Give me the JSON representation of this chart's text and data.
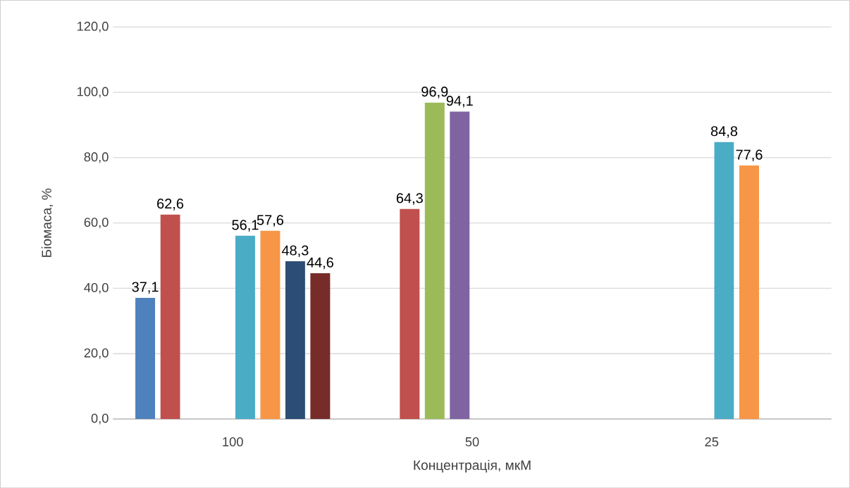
{
  "chart_data": {
    "type": "bar",
    "xlabel": "Концентрація, мкМ",
    "ylabel": "Біомаса, %",
    "categories": [
      "100",
      "50",
      "25"
    ],
    "series": [
      {
        "color": "#4f81bd",
        "values": [
          37.1,
          null,
          null
        ],
        "value_labels": [
          "37,1",
          null,
          null
        ]
      },
      {
        "color": "#c0504d",
        "values": [
          62.6,
          64.3,
          null
        ],
        "value_labels": [
          "62,6",
          "64,3",
          null
        ]
      },
      {
        "color": "#9bbb59",
        "values": [
          null,
          96.9,
          null
        ],
        "value_labels": [
          null,
          "96,9",
          null
        ]
      },
      {
        "color": "#8064a2",
        "values": [
          null,
          94.1,
          null
        ],
        "value_labels": [
          null,
          "94,1",
          null
        ]
      },
      {
        "color": "#4bacc6",
        "values": [
          56.1,
          null,
          84.8
        ],
        "value_labels": [
          "56,1",
          null,
          "84,8"
        ]
      },
      {
        "color": "#f79646",
        "values": [
          57.6,
          null,
          77.6
        ],
        "value_labels": [
          "57,6",
          null,
          "77,6"
        ]
      },
      {
        "color": "#2c4d75",
        "values": [
          48.3,
          null,
          null
        ],
        "value_labels": [
          "48,3",
          null,
          null
        ]
      },
      {
        "color": "#772c2a",
        "values": [
          44.6,
          null,
          null
        ],
        "value_labels": [
          "44,6",
          null,
          null
        ]
      }
    ],
    "ylim": [
      0,
      120
    ],
    "yticks": [
      {
        "value": 0,
        "label": "0,0"
      },
      {
        "value": 20,
        "label": "20,0"
      },
      {
        "value": 40,
        "label": "40,0"
      },
      {
        "value": 60,
        "label": "60,0"
      },
      {
        "value": 80,
        "label": "80,0"
      },
      {
        "value": 100,
        "label": "100,0"
      },
      {
        "value": 120,
        "label": "120,0"
      }
    ],
    "grid": "y"
  }
}
